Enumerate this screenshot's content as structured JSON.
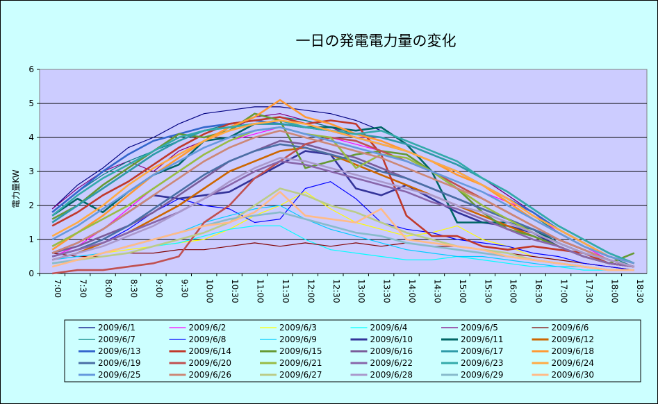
{
  "chart_data": {
    "type": "line",
    "title": "一日の発電電力量の変化",
    "ylabel": "電力量KW",
    "xlabel": "",
    "ylim": [
      0,
      6
    ],
    "yticks": [
      0,
      1,
      2,
      3,
      4,
      5,
      6
    ],
    "x": [
      "7:00",
      "7:30",
      "8:00",
      "8:30",
      "9:00",
      "9:30",
      "10:00",
      "10:30",
      "11:00",
      "11:30",
      "12:00",
      "12:30",
      "13:00",
      "13:30",
      "14:00",
      "14:30",
      "15:00",
      "15:30",
      "16:00",
      "16:30",
      "17:00",
      "17:30",
      "18:00",
      "18:30"
    ],
    "grid": true,
    "legend": "bottom",
    "series": [
      {
        "name": "2009/6/1",
        "color": "#000080",
        "values": [
          1.9,
          2.6,
          3.1,
          3.7,
          4.0,
          4.4,
          4.7,
          4.8,
          4.9,
          4.9,
          4.8,
          4.7,
          4.5,
          4.2,
          3.9,
          3.6,
          3.3,
          2.8,
          2.3,
          1.8,
          1.2,
          0.8,
          0.5,
          0.3
        ]
      },
      {
        "name": "2009/6/2",
        "color": "#ff00ff",
        "values": [
          0.5,
          0.8,
          1.3,
          1.9,
          2.5,
          3.0,
          3.5,
          3.9,
          4.1,
          4.3,
          4.1,
          4.0,
          3.8,
          3.6,
          3.3,
          3.0,
          2.7,
          2.4,
          2.1,
          1.8,
          1.2,
          0.8,
          0.4,
          0.2
        ]
      },
      {
        "name": "2009/6/3",
        "color": "#ffff00",
        "values": [
          0.3,
          0.4,
          0.6,
          0.7,
          0.8,
          0.9,
          1.0,
          1.3,
          1.7,
          2.0,
          2.4,
          1.9,
          1.5,
          1.3,
          1.1,
          1.2,
          1.4,
          1.0,
          0.8,
          0.5,
          0.4,
          0.3,
          0.2,
          0.1
        ]
      },
      {
        "name": "2009/6/4",
        "color": "#00ffff",
        "values": [
          0.3,
          0.4,
          0.5,
          0.6,
          0.8,
          0.9,
          1.1,
          1.3,
          1.4,
          1.4,
          1.0,
          0.7,
          0.6,
          0.5,
          0.4,
          0.4,
          0.5,
          0.4,
          0.3,
          0.2,
          0.2,
          0.1,
          0.1,
          0.1
        ]
      },
      {
        "name": "2009/6/5",
        "color": "#800080",
        "values": [
          1.9,
          2.5,
          3.0,
          3.3,
          3.0,
          3.6,
          3.9,
          4.2,
          4.6,
          4.7,
          4.5,
          4.3,
          4.0,
          4.0,
          3.8,
          3.5,
          3.2,
          2.8,
          2.3,
          1.8,
          1.3,
          0.9,
          0.5,
          0.3
        ]
      },
      {
        "name": "2009/6/6",
        "color": "#800000",
        "values": [
          0.6,
          0.5,
          0.5,
          0.6,
          0.6,
          0.7,
          0.7,
          0.8,
          0.9,
          0.8,
          0.9,
          0.8,
          0.9,
          0.8,
          0.9,
          0.8,
          0.8,
          0.7,
          0.6,
          0.5,
          0.4,
          0.3,
          0.2,
          0.1
        ]
      },
      {
        "name": "2009/6/7",
        "color": "#008080",
        "values": [
          1.8,
          2.4,
          2.9,
          3.3,
          3.6,
          3.9,
          4.2,
          4.4,
          4.5,
          4.6,
          4.5,
          4.3,
          4.1,
          3.9,
          3.6,
          3.3,
          3.0,
          2.6,
          2.2,
          1.7,
          1.2,
          0.8,
          0.5,
          0.2
        ]
      },
      {
        "name": "2009/6/8",
        "color": "#0000ff",
        "values": [
          0.4,
          0.6,
          0.9,
          1.3,
          1.8,
          2.2,
          2.0,
          1.9,
          1.5,
          1.6,
          2.5,
          2.7,
          2.2,
          1.5,
          1.3,
          1.2,
          1.0,
          0.9,
          0.8,
          0.6,
          0.5,
          0.3,
          0.2,
          0.1
        ]
      },
      {
        "name": "2009/6/9",
        "color": "#00ccff",
        "values": [
          0.4,
          0.5,
          0.6,
          0.8,
          1.0,
          1.2,
          1.5,
          1.7,
          1.9,
          2.0,
          1.6,
          1.3,
          1.1,
          0.9,
          0.7,
          0.6,
          0.5,
          0.5,
          0.4,
          0.3,
          0.2,
          0.2,
          0.1,
          0.1
        ]
      },
      {
        "name": "2009/6/10",
        "color": "#333399",
        "values": [
          0.6,
          0.9,
          1.3,
          1.8,
          2.3,
          2.2,
          2.3,
          2.4,
          2.8,
          3.2,
          3.6,
          3.5,
          2.5,
          2.3,
          2.6,
          2.2,
          1.8,
          1.5,
          1.4,
          1.2,
          0.8,
          0.5,
          0.3,
          0.2
        ]
      },
      {
        "name": "2009/6/11",
        "color": "#006666",
        "values": [
          1.7,
          2.2,
          1.8,
          2.4,
          2.9,
          3.2,
          3.9,
          4.0,
          4.4,
          4.4,
          4.3,
          4.3,
          4.2,
          4.3,
          3.8,
          3.0,
          1.5,
          1.5,
          1.5,
          1.3,
          0.9,
          0.6,
          0.4,
          0.2
        ]
      },
      {
        "name": "2009/6/12",
        "color": "#cc6600",
        "values": [
          0.4,
          0.6,
          0.9,
          1.2,
          1.6,
          2.0,
          2.5,
          3.0,
          3.3,
          3.6,
          3.7,
          3.5,
          3.2,
          2.9,
          2.6,
          2.3,
          2.0,
          1.7,
          1.4,
          1.1,
          0.8,
          0.5,
          0.3,
          0.2
        ]
      },
      {
        "name": "2009/6/13",
        "color": "#3366cc",
        "values": [
          1.8,
          2.4,
          3.0,
          3.5,
          3.9,
          4.1,
          4.3,
          4.4,
          4.5,
          4.4,
          4.3,
          4.2,
          4.0,
          3.8,
          3.6,
          3.3,
          3.0,
          2.6,
          2.2,
          1.8,
          1.3,
          0.9,
          0.5,
          0.3
        ]
      },
      {
        "name": "2009/6/14",
        "color": "#c0392b",
        "values": [
          1.4,
          1.8,
          2.3,
          2.7,
          3.2,
          3.7,
          4.1,
          4.4,
          4.5,
          4.6,
          4.4,
          4.5,
          4.4,
          3.5,
          1.7,
          1.1,
          1.1,
          0.8,
          0.7,
          0.8,
          0.7,
          0.6,
          0.3,
          0.2
        ]
      },
      {
        "name": "2009/6/15",
        "color": "#669933",
        "values": [
          1.6,
          2.0,
          2.6,
          3.1,
          3.6,
          4.1,
          4.0,
          4.2,
          4.7,
          4.5,
          3.1,
          3.3,
          3.5,
          3.6,
          3.5,
          3.0,
          2.5,
          1.8,
          1.3,
          1.1,
          0.8,
          0.5,
          0.3,
          0.6
        ]
      },
      {
        "name": "2009/6/16",
        "color": "#7a5c99",
        "values": [
          0.6,
          0.8,
          1.1,
          1.4,
          1.8,
          2.3,
          2.8,
          3.3,
          3.6,
          3.9,
          3.8,
          3.6,
          3.4,
          3.1,
          2.8,
          2.5,
          2.2,
          1.9,
          1.6,
          1.3,
          1.0,
          0.7,
          0.4,
          0.2
        ]
      },
      {
        "name": "2009/6/17",
        "color": "#2e9aa8",
        "values": [
          1.5,
          2.0,
          2.5,
          3.0,
          3.5,
          3.9,
          4.2,
          4.3,
          4.4,
          4.4,
          4.3,
          4.2,
          4.1,
          4.0,
          3.8,
          3.5,
          3.2,
          2.8,
          2.4,
          1.9,
          1.4,
          1.0,
          0.6,
          0.3
        ]
      },
      {
        "name": "2009/6/18",
        "color": "#ff9933",
        "values": [
          0.7,
          1.2,
          1.7,
          2.3,
          2.9,
          3.4,
          3.9,
          4.3,
          4.6,
          5.1,
          4.6,
          4.4,
          4.1,
          3.9,
          3.6,
          3.3,
          2.9,
          2.6,
          2.1,
          1.6,
          1.2,
          0.8,
          0.5,
          0.3
        ]
      },
      {
        "name": "2009/6/19",
        "color": "#4a6fa5",
        "values": [
          0.5,
          0.7,
          1.0,
          1.4,
          1.9,
          2.4,
          2.9,
          3.3,
          3.6,
          3.8,
          3.7,
          3.5,
          3.3,
          3.0,
          2.8,
          2.5,
          2.2,
          1.9,
          1.6,
          1.3,
          1.0,
          0.7,
          0.4,
          0.2
        ]
      },
      {
        "name": "2009/6/20",
        "color": "#c05050",
        "values": [
          0.0,
          0.1,
          0.1,
          0.2,
          0.3,
          0.5,
          1.5,
          2.0,
          2.8,
          3.3,
          3.8,
          4.0,
          3.9,
          3.6,
          3.3,
          3.0,
          2.6,
          2.2,
          1.8,
          1.4,
          1.0,
          0.7,
          0.4,
          0.2
        ]
      },
      {
        "name": "2009/6/21",
        "color": "#99bb44",
        "values": [
          0.8,
          1.2,
          1.6,
          2.0,
          2.5,
          3.0,
          3.5,
          3.9,
          4.2,
          4.3,
          4.1,
          4.0,
          3.1,
          3.5,
          3.4,
          3.0,
          2.5,
          2.0,
          1.6,
          1.2,
          0.9,
          0.6,
          0.4,
          0.2
        ]
      },
      {
        "name": "2009/6/22",
        "color": "#8866aa",
        "values": [
          0.5,
          0.7,
          0.9,
          1.2,
          1.5,
          1.8,
          2.2,
          2.6,
          3.0,
          3.3,
          3.2,
          3.0,
          2.8,
          2.6,
          2.4,
          2.1,
          1.9,
          1.6,
          1.3,
          1.0,
          0.8,
          0.5,
          0.3,
          0.2
        ]
      },
      {
        "name": "2009/6/23",
        "color": "#33aaaa",
        "values": [
          1.7,
          2.3,
          2.8,
          3.2,
          3.6,
          4.0,
          4.2,
          4.3,
          4.4,
          4.5,
          4.3,
          4.2,
          4.1,
          4.2,
          3.9,
          3.6,
          3.3,
          2.8,
          2.4,
          1.9,
          1.4,
          1.0,
          0.6,
          0.3
        ]
      },
      {
        "name": "2009/6/24",
        "color": "#ffaa44",
        "values": [
          1.1,
          1.5,
          2.0,
          2.6,
          3.1,
          3.5,
          3.9,
          4.2,
          4.4,
          4.5,
          4.4,
          4.2,
          4.0,
          3.8,
          3.6,
          3.3,
          3.0,
          2.6,
          2.2,
          1.7,
          1.3,
          0.9,
          0.5,
          0.3
        ]
      },
      {
        "name": "2009/6/25",
        "color": "#6699dd",
        "values": [
          1.0,
          1.4,
          1.9,
          2.4,
          2.9,
          3.3,
          3.7,
          4.0,
          4.2,
          4.3,
          4.1,
          3.9,
          3.7,
          3.5,
          3.3,
          3.0,
          2.7,
          2.4,
          2.0,
          1.6,
          1.2,
          0.8,
          0.5,
          0.3
        ]
      },
      {
        "name": "2009/6/26",
        "color": "#cc8877",
        "values": [
          0.6,
          0.9,
          1.3,
          1.8,
          2.3,
          2.8,
          3.3,
          3.7,
          4.0,
          4.2,
          4.0,
          3.8,
          3.6,
          3.4,
          3.1,
          2.8,
          2.5,
          2.2,
          1.8,
          1.4,
          1.0,
          0.7,
          0.4,
          0.2
        ]
      },
      {
        "name": "2009/6/27",
        "color": "#bbcc88",
        "values": [
          0.3,
          0.4,
          0.5,
          0.6,
          0.8,
          1.0,
          1.2,
          1.5,
          2.0,
          2.5,
          2.3,
          2.0,
          1.8,
          1.5,
          1.2,
          1.0,
          0.8,
          0.7,
          0.6,
          0.4,
          0.3,
          0.2,
          0.1,
          0.1
        ]
      },
      {
        "name": "2009/6/28",
        "color": "#aa99cc",
        "values": [
          0.4,
          0.6,
          0.8,
          1.1,
          1.4,
          1.8,
          2.2,
          2.7,
          3.1,
          3.4,
          3.3,
          3.1,
          2.9,
          2.7,
          2.5,
          2.3,
          2.0,
          1.8,
          1.5,
          1.2,
          0.9,
          0.6,
          0.4,
          0.2
        ]
      },
      {
        "name": "2009/6/29",
        "color": "#88bbcc",
        "values": [
          0.3,
          0.4,
          0.6,
          0.8,
          1.0,
          1.2,
          1.4,
          1.6,
          1.7,
          1.8,
          1.6,
          1.4,
          1.2,
          1.1,
          0.9,
          0.8,
          0.7,
          0.6,
          0.5,
          0.4,
          0.3,
          0.2,
          0.1,
          0.1
        ]
      },
      {
        "name": "2009/6/30",
        "color": "#ffbb88",
        "values": [
          0.2,
          0.4,
          0.6,
          0.8,
          1.0,
          1.2,
          1.4,
          1.5,
          1.8,
          2.4,
          1.7,
          1.6,
          1.5,
          1.9,
          1.0,
          0.9,
          0.8,
          0.7,
          0.5,
          0.4,
          0.3,
          0.2,
          0.1,
          0.1
        ]
      }
    ]
  }
}
